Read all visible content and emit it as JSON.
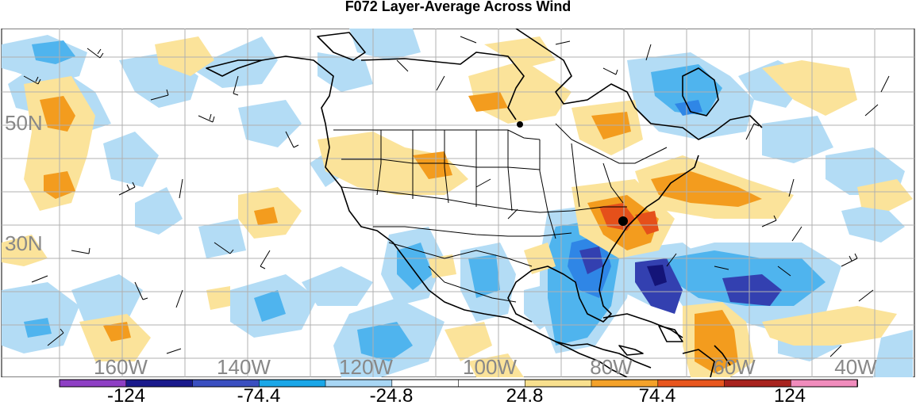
{
  "title": "F072 Layer-Average Across Wind",
  "map": {
    "lon_labels": [
      "160W",
      "140W",
      "120W",
      "100W",
      "80W",
      "60W",
      "40W"
    ],
    "lat_labels": [
      "50N",
      "30N"
    ]
  },
  "colorbar": {
    "tick_labels": [
      "-124",
      "-74.4",
      "-24.8",
      "24.8",
      "74.4",
      "124"
    ],
    "colors": [
      "#8e3fc4",
      "#1a1a8c",
      "#3a4fc0",
      "#1aa7e8",
      "#a8d6f4",
      "#ffffff",
      "#ffffff",
      "#f8e08e",
      "#f4a22a",
      "#e8561e",
      "#a8231e",
      "#f08cbc"
    ]
  },
  "colors": {
    "light_blue": "#b3dcf5",
    "mid_blue": "#4fb4ee",
    "blue": "#2f86e6",
    "dark_blue": "#3340b0",
    "navy": "#141478",
    "light_yellow": "#fbe39a",
    "orange": "#f39c1e",
    "red_orange": "#e5501a",
    "land_line": "#000000",
    "grid": "#b0b0b0"
  }
}
